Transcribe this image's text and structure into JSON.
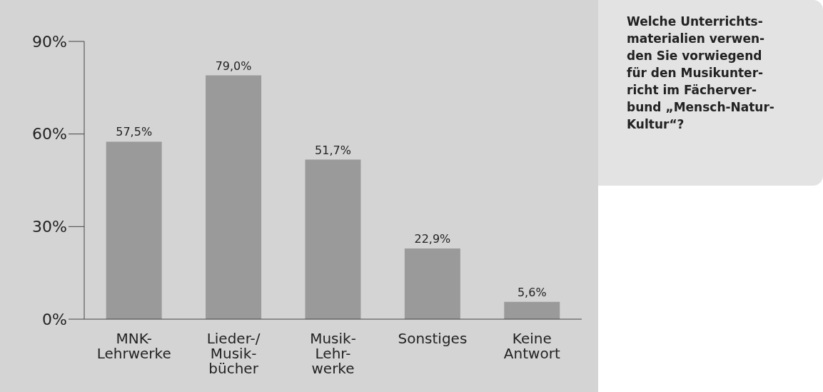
{
  "chart_data": {
    "type": "bar",
    "title": "Welche Unterrichts-\nmaterialien verwen-\nden Sie vorwiegend\nfür den Musikunter-\nricht im Fächerver-\nbund „Mensch-Natur-\nKultur“?",
    "categories": [
      "MNK-\nLehrwerke",
      "Lieder-/\nMusik-\nbücher",
      "Musik-\nLehr-\nwerke",
      "Sonstiges",
      "Keine\nAntwort"
    ],
    "values": [
      57.5,
      79.0,
      51.7,
      22.9,
      5.6
    ],
    "value_labels": [
      "57,5%",
      "79,0%",
      "51,7%",
      "22,9%",
      "5,6%"
    ],
    "color": "#9a9a9a",
    "ylim": [
      0,
      90
    ],
    "yticks": [
      {
        "value": 0,
        "label": "0%"
      },
      {
        "value": 30,
        "label": "30%"
      },
      {
        "value": 60,
        "label": "60%"
      },
      {
        "value": 90,
        "label": "90%"
      }
    ],
    "grid": false,
    "legend": false
  }
}
